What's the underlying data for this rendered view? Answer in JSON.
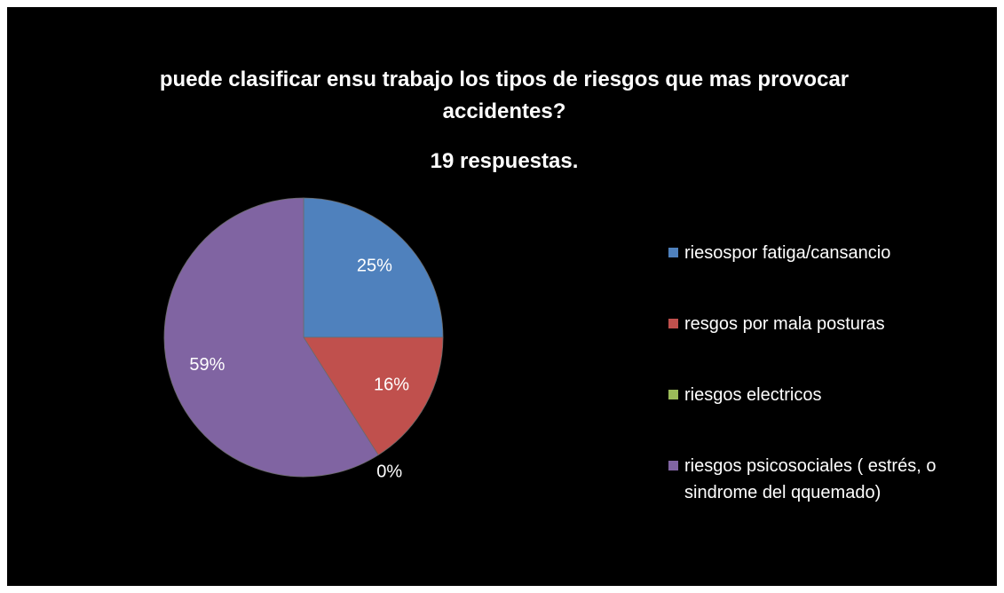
{
  "chart_data": {
    "type": "pie",
    "title": "puede clasificar ensu trabajo los tipos de riesgos que mas provocar accidentes?",
    "subtitle": "19 respuestas.",
    "categories": [
      "riesospor fatiga/cansancio",
      "resgos por mala posturas",
      "riesgos electricos",
      "riesgos psicosociales ( estrés, o sindrome del qquemado)"
    ],
    "values": [
      25,
      16,
      0,
      59
    ],
    "value_labels": [
      "25%",
      "16%",
      "0%",
      "59%"
    ],
    "colors": [
      "#4f81bd",
      "#c0504d",
      "#9bbb59",
      "#8064a2"
    ],
    "legend": "right"
  }
}
